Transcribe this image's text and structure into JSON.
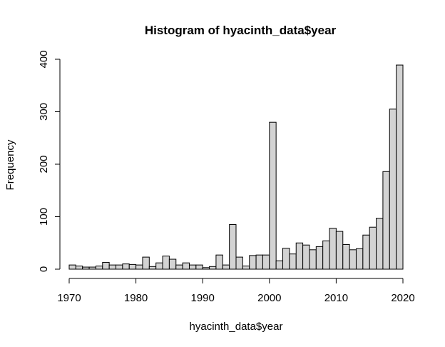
{
  "chart_data": {
    "type": "bar",
    "title": "Histogram of hyacinth_data$year",
    "xlabel": "hyacinth_data$year",
    "ylabel": "Frequency",
    "bin_width": 1,
    "xlim": [
      1970,
      2020
    ],
    "ylim": [
      0,
      400
    ],
    "x_ticks": [
      1970,
      1980,
      1990,
      2000,
      2010,
      2020
    ],
    "y_ticks": [
      0,
      100,
      200,
      300,
      400
    ],
    "bins_start": [
      1970,
      1971,
      1972,
      1973,
      1974,
      1975,
      1976,
      1977,
      1978,
      1979,
      1980,
      1981,
      1982,
      1983,
      1984,
      1985,
      1986,
      1987,
      1988,
      1989,
      1990,
      1991,
      1992,
      1993,
      1994,
      1995,
      1996,
      1997,
      1998,
      1999,
      2000,
      2001,
      2002,
      2003,
      2004,
      2005,
      2006,
      2007,
      2008,
      2009,
      2010,
      2011,
      2012,
      2013,
      2014,
      2015,
      2016,
      2017,
      2018,
      2019
    ],
    "values": [
      8,
      6,
      4,
      4,
      6,
      13,
      8,
      8,
      10,
      9,
      8,
      23,
      5,
      12,
      25,
      19,
      8,
      12,
      8,
      8,
      3,
      5,
      27,
      8,
      85,
      23,
      6,
      26,
      27,
      27,
      280,
      16,
      40,
      29,
      50,
      46,
      37,
      43,
      54,
      78,
      72,
      47,
      37,
      39,
      65,
      80,
      97,
      186,
      305,
      389
    ],
    "grid": false,
    "legend": "none"
  }
}
